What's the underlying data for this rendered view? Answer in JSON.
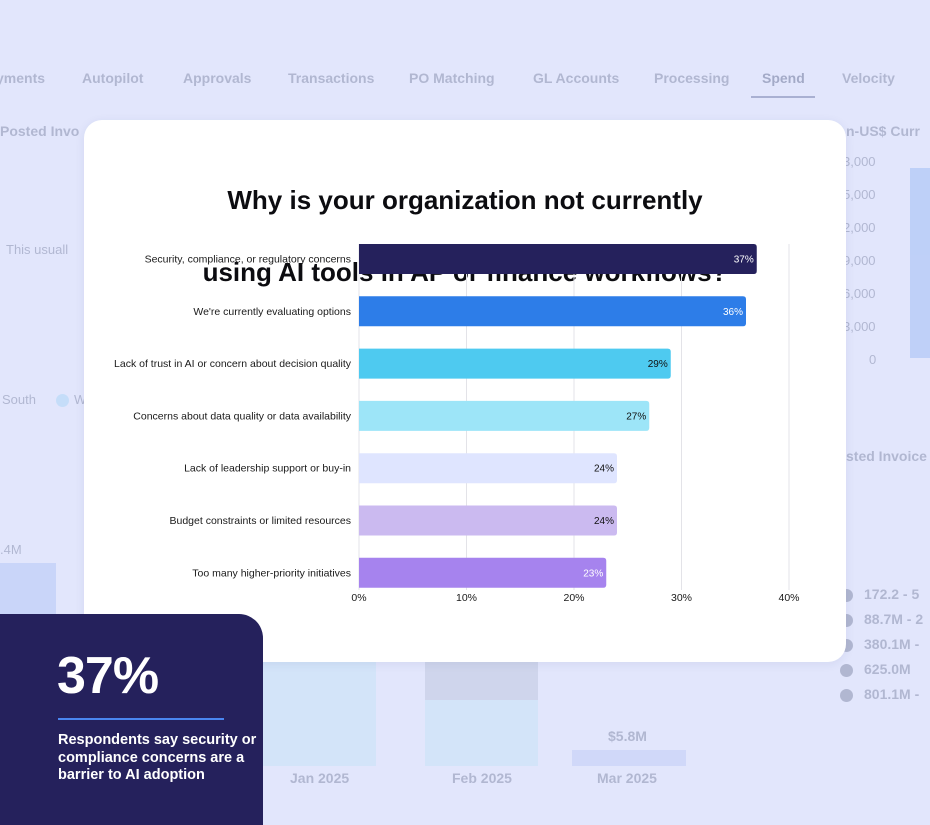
{
  "background": {
    "tabs": [
      {
        "label": "yments",
        "active": false
      },
      {
        "label": "Autopilot",
        "active": false
      },
      {
        "label": "Approvals",
        "active": false
      },
      {
        "label": "Transactions",
        "active": false
      },
      {
        "label": "PO Matching",
        "active": false
      },
      {
        "label": "GL Accounts",
        "active": false
      },
      {
        "label": "Processing",
        "active": false
      },
      {
        "label": "Spend",
        "active": true
      },
      {
        "label": "Velocity",
        "active": false
      }
    ],
    "left_panel_title": "Posted Invo",
    "left_panel_note": "This usuall",
    "legend_south": "South",
    "legend_w": "W",
    "left_bar_value": ".4M",
    "right_panel_title": "n-US$ Curr",
    "right_yticks": [
      "3,000",
      "5,000",
      "2,000",
      "9,000",
      "6,000",
      "3,000",
      "0"
    ],
    "right_panel2_title": "sted Invoice",
    "right_legend": [
      "172.2 - 5",
      "88.7M - 2",
      "380.1M -",
      "625.0M",
      "801.1M -"
    ],
    "months": [
      "Jan 2025",
      "Feb 2025",
      "Mar 2025"
    ],
    "mar_value": "$5.8M"
  },
  "card": {
    "title_line1": "Why is your organization not currently",
    "title_line2": "using AI tools in AP or finance workflows?"
  },
  "chart_data": {
    "type": "bar",
    "orientation": "horizontal",
    "title": "Why is your organization not currently using AI tools in AP or finance workflows?",
    "categories": [
      "Security, compliance, or regulatory concerns",
      "We're currently evaluating options",
      "Lack of trust in AI or concern about decision quality",
      "Concerns about data quality or data availability",
      "Lack of leadership support or buy-in",
      "Budget constraints or limited resources",
      "Too many higher-priority initiatives"
    ],
    "values": [
      37,
      36,
      29,
      27,
      24,
      24,
      23
    ],
    "value_labels": [
      "37%",
      "36%",
      "29%",
      "27%",
      "24%",
      "24%",
      "23%"
    ],
    "colors": [
      "#25215c",
      "#2d7de8",
      "#4ecaf0",
      "#9de5f8",
      "#dfe5ff",
      "#cbbaf0",
      "#a683ee"
    ],
    "label_colors": [
      "#ffffff",
      "#ffffff",
      "#111111",
      "#111111",
      "#111111",
      "#111111",
      "#ffffff"
    ],
    "xlim": [
      0,
      40
    ],
    "xticks": [
      0,
      10,
      20,
      30,
      40
    ],
    "xtick_labels": [
      "0%",
      "10%",
      "20%",
      "30%",
      "40%"
    ],
    "xlabel": "",
    "ylabel": "",
    "grid": "vertical",
    "legend": "none"
  },
  "callout": {
    "value": "37%",
    "text": "Respondents say security or compliance concerns are a barrier to AI adoption"
  }
}
